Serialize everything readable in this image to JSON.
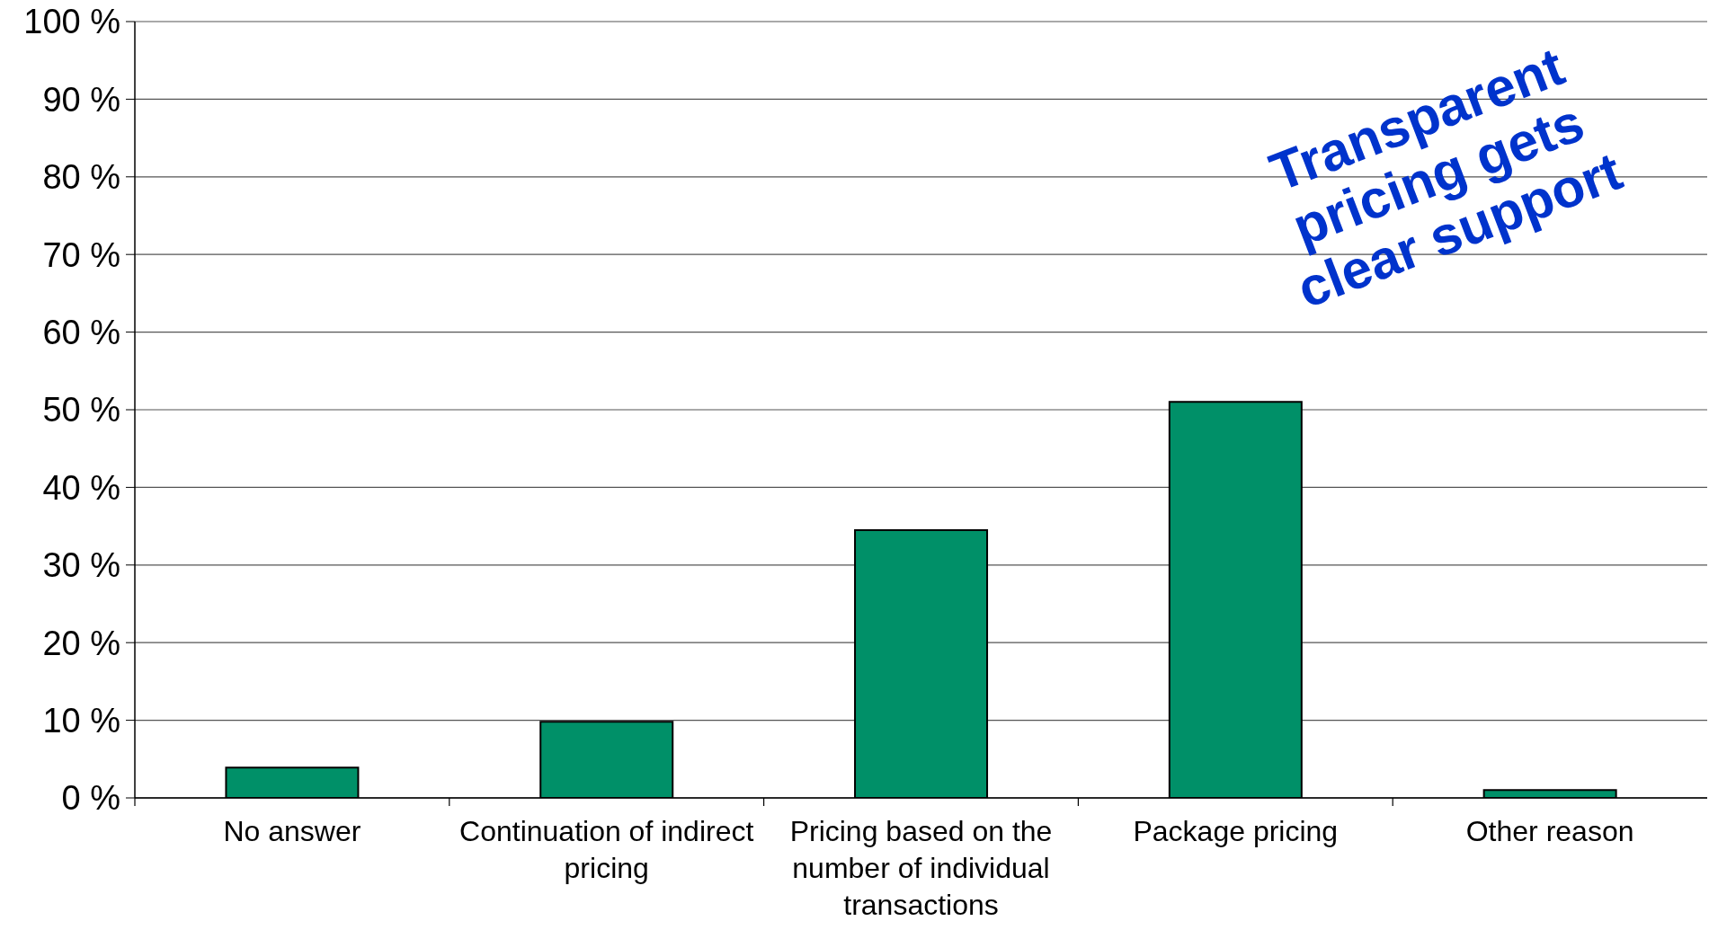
{
  "chart_data": {
    "type": "bar",
    "categories": [
      "No answer",
      "Continuation of indirect pricing",
      "Pricing based on the number of individual transactions",
      "Package pricing",
      "Other reason"
    ],
    "values": [
      3.9,
      9.8,
      34.5,
      51,
      1
    ],
    "color": "#009068",
    "ylim": [
      0,
      100
    ],
    "yticks": [
      {
        "value": 0,
        "label": "0 %"
      },
      {
        "value": 10,
        "label": "10 %"
      },
      {
        "value": 20,
        "label": "20 %"
      },
      {
        "value": 30,
        "label": "30 %"
      },
      {
        "value": 40,
        "label": "40 %"
      },
      {
        "value": 50,
        "label": "50 %"
      },
      {
        "value": 60,
        "label": "60 %"
      },
      {
        "value": 70,
        "label": "70 %"
      },
      {
        "value": 80,
        "label": "80 %"
      },
      {
        "value": 90,
        "label": "90 %"
      },
      {
        "value": 100,
        "label": "100 %"
      }
    ],
    "grid": "y",
    "annotations": [
      "Transparent pricing gets clear support"
    ]
  }
}
